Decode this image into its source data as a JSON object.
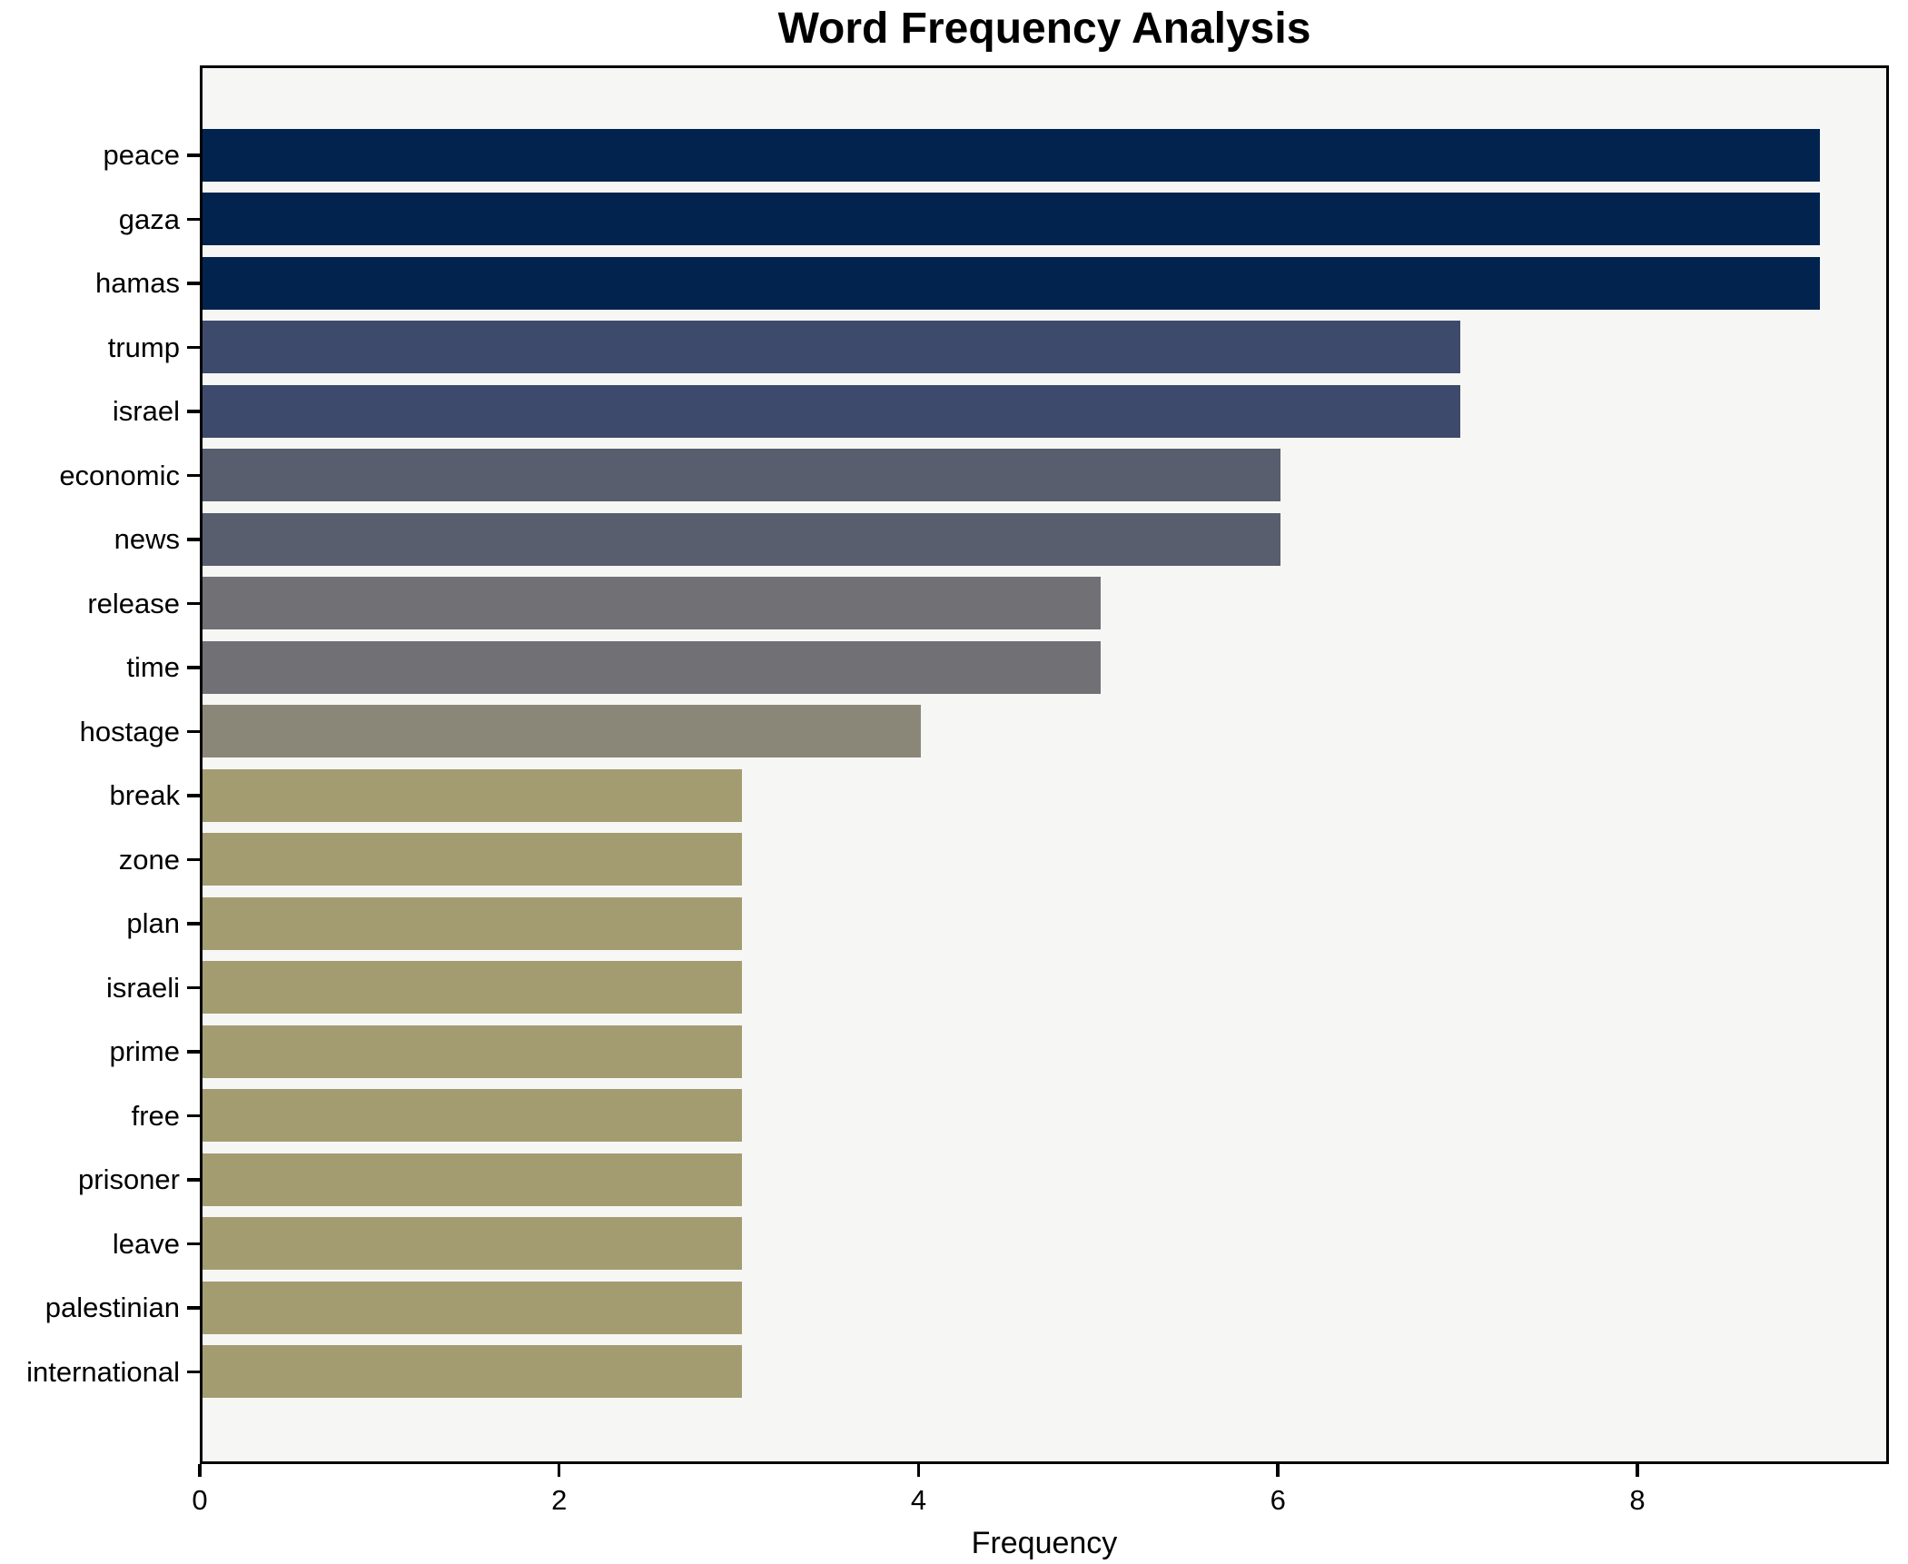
{
  "chart_data": {
    "type": "bar",
    "orientation": "horizontal",
    "title": "Word Frequency Analysis",
    "xlabel": "Frequency",
    "ylabel": "",
    "categories": [
      "peace",
      "gaza",
      "hamas",
      "trump",
      "israel",
      "economic",
      "news",
      "release",
      "time",
      "hostage",
      "break",
      "zone",
      "plan",
      "israeli",
      "prime",
      "free",
      "prisoner",
      "leave",
      "palestinian",
      "international"
    ],
    "values": [
      9,
      9,
      9,
      7,
      7,
      6,
      6,
      5,
      5,
      4,
      3,
      3,
      3,
      3,
      3,
      3,
      3,
      3,
      3,
      3
    ],
    "bar_colors": [
      "#03234F",
      "#03234F",
      "#03234F",
      "#3E4A6B",
      "#3E4A6B",
      "#585E6E",
      "#585E6E",
      "#717074",
      "#717074",
      "#8B8778",
      "#A49C71",
      "#A49C71",
      "#A49C71",
      "#A49C71",
      "#A49C71",
      "#A49C71",
      "#A49C71",
      "#A49C71",
      "#A49C71",
      "#A49C71"
    ],
    "xticks": [
      0,
      2,
      4,
      6,
      8
    ],
    "xlim": [
      0,
      9.4
    ],
    "grid": false,
    "legend": false,
    "plot_background": "#F6F6F5",
    "figure_background": "#FFFFFF",
    "spine_color": "#000000"
  }
}
